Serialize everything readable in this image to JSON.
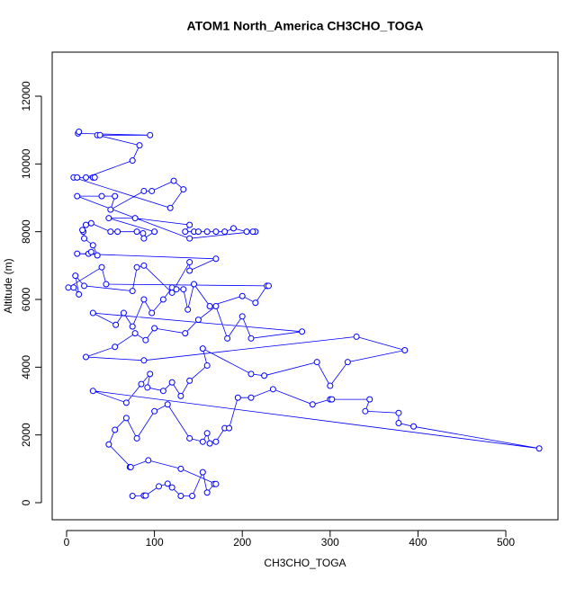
{
  "chart_data": {
    "type": "scatter",
    "title": "ATOM1 North_America CH3CHO_TOGA",
    "x_label": "CH3CHO_TOGA",
    "y_label": "Altitude (m)",
    "color": "#0000ff",
    "connect": true,
    "x": [
      75,
      88,
      90,
      105,
      115,
      120,
      130,
      143,
      155,
      160,
      168,
      170,
      130,
      93,
      72,
      73,
      48,
      55,
      68,
      80,
      100,
      115,
      140,
      155,
      160,
      163,
      170,
      180,
      185,
      195,
      210,
      235,
      280,
      300,
      302,
      345,
      340,
      378,
      378,
      395,
      538,
      30,
      68,
      85,
      95,
      92,
      110,
      120,
      130,
      140,
      160,
      155,
      210,
      225,
      285,
      300,
      320,
      385,
      330,
      88,
      22,
      55,
      78,
      90,
      100,
      135,
      150,
      170,
      183,
      200,
      210,
      268,
      30,
      56,
      65,
      75,
      88,
      97,
      110,
      120,
      125,
      133,
      138,
      145,
      163,
      200,
      215,
      228,
      230,
      45,
      40,
      2,
      8,
      14,
      10,
      20,
      75,
      80,
      88,
      120,
      140,
      140,
      170,
      12,
      25,
      28,
      35,
      30,
      20,
      19,
      18,
      22,
      28,
      50,
      58,
      80,
      87,
      88,
      100,
      48,
      78,
      140,
      135,
      145,
      150,
      160,
      170,
      180,
      190,
      205,
      215,
      212,
      140,
      12,
      40,
      55,
      50,
      88,
      97,
      122,
      133,
      118,
      8,
      12,
      30,
      32,
      22,
      75,
      83,
      35,
      38,
      95,
      13,
      14
    ],
    "y": [
      200,
      210,
      210,
      480,
      560,
      450,
      200,
      200,
      900,
      300,
      550,
      550,
      1000,
      1250,
      1050,
      1050,
      1720,
      2150,
      2500,
      1900,
      2700,
      2900,
      1900,
      1800,
      2050,
      1750,
      1800,
      2200,
      2200,
      3100,
      3100,
      3350,
      2900,
      3050,
      3050,
      3050,
      2700,
      2650,
      2350,
      2250,
      1600,
      3300,
      2950,
      3500,
      3800,
      3400,
      3300,
      3550,
      3150,
      3600,
      4050,
      4550,
      3800,
      3750,
      4150,
      3450,
      4150,
      4500,
      4900,
      4200,
      4300,
      4600,
      5000,
      4800,
      5150,
      5000,
      5400,
      5800,
      4850,
      5500,
      4850,
      5050,
      5600,
      5250,
      5600,
      5200,
      6000,
      5600,
      6000,
      6350,
      6300,
      6300,
      5700,
      6450,
      5800,
      6100,
      5900,
      6400,
      6400,
      6450,
      6950,
      6350,
      6350,
      6150,
      6700,
      6400,
      6250,
      6950,
      7000,
      6200,
      7100,
      6850,
      7200,
      7350,
      7350,
      7400,
      7300,
      7600,
      7800,
      8000,
      8050,
      8200,
      8250,
      8000,
      8000,
      8000,
      7950,
      7800,
      8000,
      8400,
      8400,
      8200,
      8000,
      8000,
      8000,
      8000,
      8000,
      8000,
      8100,
      8000,
      8000,
      8000,
      7800,
      9050,
      9050,
      9050,
      8650,
      9200,
      9200,
      9500,
      9250,
      8700,
      9600,
      9600,
      9600,
      9600,
      9600,
      10100,
      10550,
      10850,
      10850,
      10850,
      10900,
      10950
    ],
    "xlim": [
      -16.4,
      559.4
    ],
    "ylim": [
      -504,
      13300
    ],
    "xticks": [
      0,
      100,
      200,
      300,
      400,
      500
    ],
    "yticks": [
      0,
      2000,
      4000,
      6000,
      8000,
      10000,
      12000
    ]
  }
}
